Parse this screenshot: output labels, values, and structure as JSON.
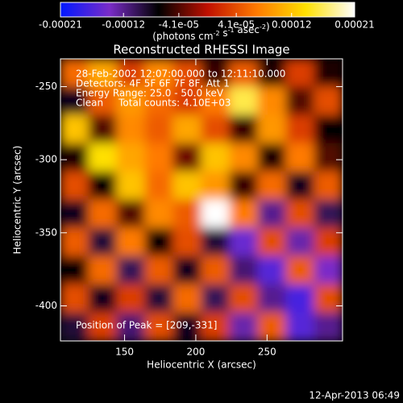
{
  "chart_data": {
    "type": "heatmap",
    "title": "Reconstructed RHESSI Image",
    "x_label": "Heliocentric X (arcsec)",
    "y_label": "Heliocentric Y (arcsec)",
    "colorbar_label": [
      {
        "text": "(photons cm",
        "sup": "-2"
      },
      {
        "text": " s",
        "sup": "-1"
      },
      {
        "text": " asec",
        "sup": "-2"
      },
      {
        "text": ")"
      }
    ],
    "clim": [
      -0.00021,
      0.00021
    ],
    "cticks": [
      -0.00021,
      -0.00012,
      {
        "value": -4.1e-05,
        "label": "-4.1e-05"
      },
      {
        "value": 4.1e-05,
        "label": "4.1e-05"
      },
      0.00012,
      0.00021
    ],
    "colormap": [
      "#0018ff",
      "#7a2cc8",
      "#000000",
      "#c01000",
      "#ff7a00",
      "#ffe000",
      "#ffffff"
    ],
    "xlim": [
      105,
      303
    ],
    "ylim": [
      -424,
      -231
    ],
    "xticks": [
      150,
      200,
      250
    ],
    "yticks": [
      -250,
      -300,
      -350,
      -400
    ],
    "annotations": [
      "28-Feb-2002 12:07:00.000 to 12:11:10.000",
      "Detectors: 4F 5F 6F 7F 8F, Att 1",
      "Energy Range: 25.0 - 50.0 keV",
      "Clean     Total counts: 4.10E+03"
    ],
    "peak_label": "Position of Peak = [209,-331]",
    "timestamp": "12-Apr-2013 06:49",
    "z": [
      [
        6e-05,
        0.0001,
        3e-05,
        8e-05,
        4e-05,
        -5e-05,
        5e-05,
        -6e-05,
        3e-05,
        -6e-05
      ],
      [
        -8e-05,
        5e-05,
        9e-05,
        6e-05,
        3e-05,
        7e-05,
        0.00016,
        8e-05,
        -4e-05,
        4e-05
      ],
      [
        0.00012,
        -4e-05,
        8e-05,
        5e-05,
        0.0001,
        4e-05,
        -5e-05,
        9e-05,
        3e-05,
        -7e-05
      ],
      [
        -6e-05,
        0.00014,
        0.0001,
        7e-05,
        -3e-05,
        0.00012,
        8e-05,
        -6e-05,
        7e-05,
        -4e-05
      ],
      [
        4e-05,
        -7e-05,
        0.00012,
        6e-05,
        0.00012,
        9e-05,
        -5e-05,
        6e-05,
        -8e-05,
        5e-05
      ],
      [
        -8e-05,
        6e-05,
        -4e-05,
        8e-05,
        5e-05,
        0.00021,
        7e-05,
        -0.00012,
        4e-05,
        -0.0001
      ],
      [
        5e-05,
        -9e-05,
        7e-05,
        -7e-05,
        4e-05,
        -9e-05,
        -0.00015,
        4e-05,
        -0.00013,
        3e-05
      ],
      [
        -7e-05,
        6e-05,
        -0.0001,
        5e-05,
        -8e-05,
        5e-05,
        -0.00011,
        -0.00016,
        5e-05,
        -0.00014
      ],
      [
        4e-05,
        -8e-05,
        3e-05,
        -9e-05,
        6e-05,
        -0.0001,
        4e-05,
        -0.00012,
        -0.00017,
        4e-05
      ],
      [
        -9e-05,
        3e-05,
        -0.00011,
        4e-05,
        -8e-05,
        3e-05,
        -0.00013,
        5e-05,
        -0.00016,
        -0.00012
      ]
    ]
  }
}
